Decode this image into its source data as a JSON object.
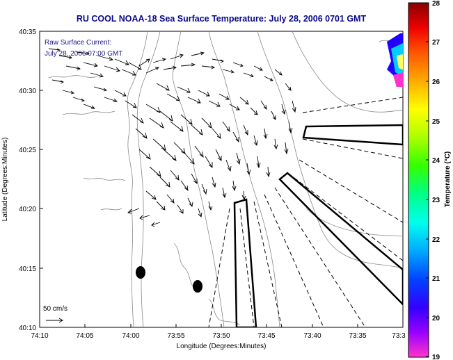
{
  "title": "RU COOL  NOAA-18  Sea Surface Temperature:  July 28, 2006 0701 GMT",
  "annotation": {
    "line1": "Raw Surface Current:",
    "line2": "July 28, 2006 07:00 GMT"
  },
  "scale_label": "50 cm/s",
  "axes": {
    "xlabel": "Longitude (Degrees:Minutes)",
    "ylabel": "Latitude (Degrees:Minutes)",
    "x_ticks": [
      "74:10",
      "74:05",
      "74:00",
      "73:55",
      "73:50",
      "73:45",
      "73:40",
      "73:35",
      "73:3"
    ],
    "y_ticks": [
      "40:35",
      "40:30",
      "40:25",
      "40:20",
      "40:15",
      "40:10"
    ]
  },
  "colorbar": {
    "label": "Temperature (°C)",
    "ticks": [
      "28",
      "27",
      "26",
      "25",
      "24",
      "23",
      "22",
      "21",
      "20",
      "19"
    ]
  },
  "colors": {
    "title": "#0a0a8a",
    "land_contour": "#888888",
    "arrows": "#000000"
  }
}
